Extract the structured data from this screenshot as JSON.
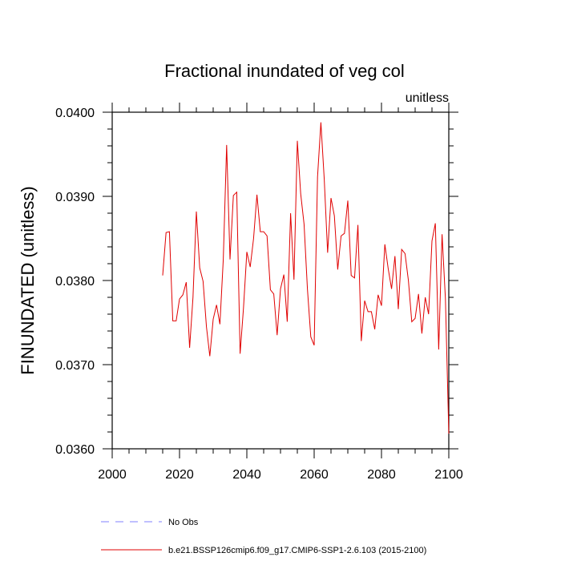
{
  "chart_data": {
    "type": "line",
    "title": "Fractional inundated of veg col",
    "units_label": "unitless",
    "ylabel": "FINUNDATED  (unitless)",
    "xlabel": "",
    "xlim": [
      2000,
      2100
    ],
    "ylim": [
      0.036,
      0.04
    ],
    "x_ticks": [
      2000,
      2020,
      2040,
      2060,
      2080,
      2100
    ],
    "x_tick_labels": [
      "2000",
      "2020",
      "2040",
      "2060",
      "2080",
      "2100"
    ],
    "y_ticks": [
      0.036,
      0.037,
      0.038,
      0.039,
      0.04
    ],
    "y_tick_labels": [
      "0.0360",
      "0.0370",
      "0.0380",
      "0.0390",
      "0.0400"
    ],
    "grid": false,
    "legend_placement": "bottom",
    "series": [
      {
        "name": "No Obs",
        "color": "#8080ff",
        "style": "dashed",
        "x": [],
        "values": []
      },
      {
        "name": "b.e21.BSSP126cmip6.f09_g17.CMIP6-SSP1-2.6.103 (2015-2100)",
        "color": "#e00000",
        "style": "solid",
        "x": [
          2015,
          2016,
          2017,
          2018,
          2019,
          2020,
          2021,
          2022,
          2023,
          2024,
          2025,
          2026,
          2027,
          2028,
          2029,
          2030,
          2031,
          2032,
          2033,
          2034,
          2035,
          2036,
          2037,
          2038,
          2039,
          2040,
          2041,
          2042,
          2043,
          2044,
          2045,
          2046,
          2047,
          2048,
          2049,
          2050,
          2051,
          2052,
          2053,
          2054,
          2055,
          2056,
          2057,
          2058,
          2059,
          2060,
          2061,
          2062,
          2063,
          2064,
          2065,
          2066,
          2067,
          2068,
          2069,
          2070,
          2071,
          2072,
          2073,
          2074,
          2075,
          2076,
          2077,
          2078,
          2079,
          2080,
          2081,
          2082,
          2083,
          2084,
          2085,
          2086,
          2087,
          2088,
          2089,
          2090,
          2091,
          2092,
          2093,
          2094,
          2095,
          2096,
          2097,
          2098,
          2099,
          2100
        ],
        "values": [
          0.03806,
          0.03857,
          0.03858,
          0.03752,
          0.03752,
          0.03778,
          0.03783,
          0.03798,
          0.0372,
          0.0378,
          0.03882,
          0.03815,
          0.03799,
          0.03745,
          0.0371,
          0.03754,
          0.03771,
          0.03748,
          0.03825,
          0.03961,
          0.03825,
          0.03901,
          0.03905,
          0.03713,
          0.03767,
          0.03834,
          0.03816,
          0.0385,
          0.03902,
          0.03858,
          0.03858,
          0.03853,
          0.03789,
          0.03784,
          0.03735,
          0.0379,
          0.03807,
          0.03751,
          0.0388,
          0.03801,
          0.03966,
          0.03903,
          0.03867,
          0.0379,
          0.03733,
          0.03723,
          0.03923,
          0.03988,
          0.0392,
          0.03833,
          0.03898,
          0.03877,
          0.03813,
          0.03853,
          0.03856,
          0.03895,
          0.03806,
          0.03803,
          0.03866,
          0.03728,
          0.03776,
          0.03763,
          0.03763,
          0.03742,
          0.03783,
          0.0377,
          0.03843,
          0.03814,
          0.0379,
          0.03829,
          0.03766,
          0.03837,
          0.03832,
          0.038,
          0.03751,
          0.03755,
          0.03784,
          0.03737,
          0.0378,
          0.0376,
          0.03847,
          0.03868,
          0.03718,
          0.03855,
          0.03778,
          0.03618
        ]
      }
    ]
  }
}
